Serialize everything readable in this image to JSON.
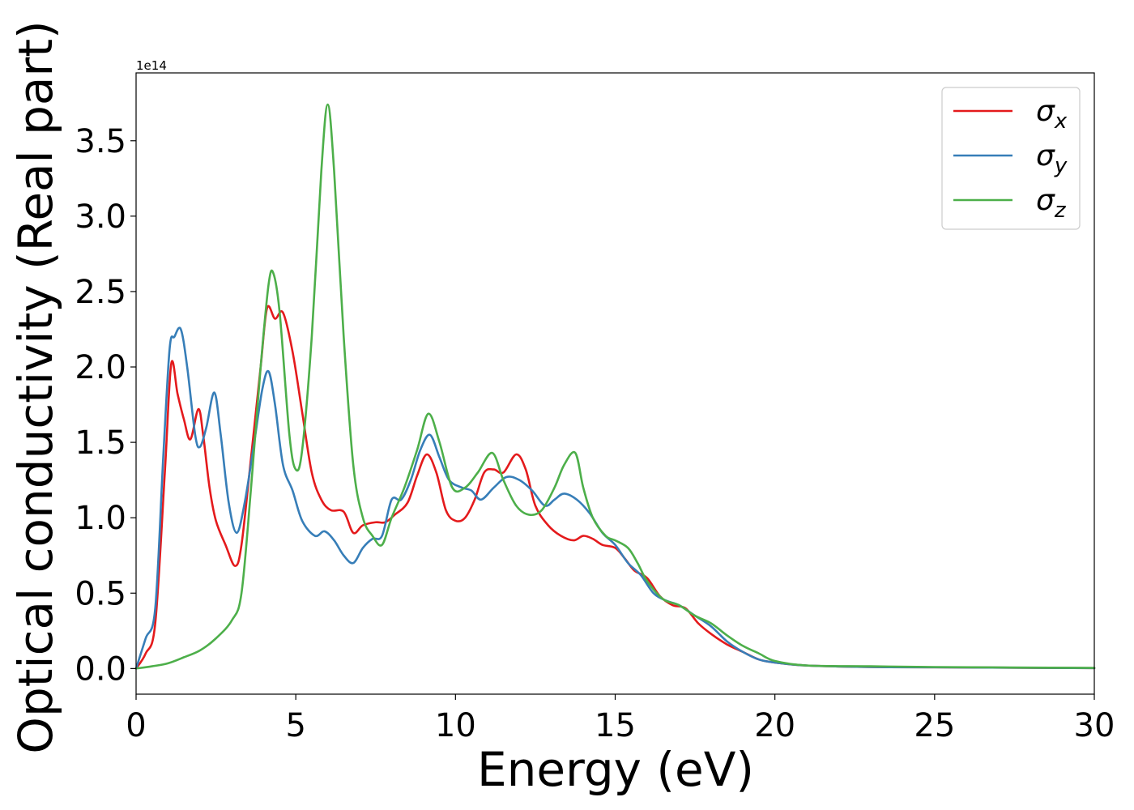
{
  "chart_data": {
    "type": "line",
    "xlabel": "Energy (eV)",
    "ylabel": "Optical conductivity (Real part)",
    "y_offset_label": "1e14",
    "xlim": [
      0,
      30
    ],
    "ylim": [
      -0.17,
      3.95
    ],
    "x_ticks": [
      0,
      5,
      10,
      15,
      20,
      25,
      30
    ],
    "x_tick_labels": [
      "0",
      "5",
      "10",
      "15",
      "20",
      "25",
      "30"
    ],
    "y_ticks": [
      0.0,
      0.5,
      1.0,
      1.5,
      2.0,
      2.5,
      3.0,
      3.5
    ],
    "y_tick_labels": [
      "0.0",
      "0.5",
      "1.0",
      "1.5",
      "2.0",
      "2.5",
      "3.0",
      "3.5"
    ],
    "grid": false,
    "legend_position": "top-right",
    "series": [
      {
        "name": "σx",
        "legend_base": "σ",
        "legend_sub": "x",
        "color": "#e41a1c",
        "points": [
          [
            0,
            0
          ],
          [
            0.3,
            0.1
          ],
          [
            0.6,
            0.3
          ],
          [
            0.9,
            1.3
          ],
          [
            1.1,
            2.02
          ],
          [
            1.3,
            1.82
          ],
          [
            1.5,
            1.65
          ],
          [
            1.7,
            1.52
          ],
          [
            1.95,
            1.72
          ],
          [
            2.1,
            1.55
          ],
          [
            2.3,
            1.2
          ],
          [
            2.5,
            0.98
          ],
          [
            2.8,
            0.82
          ],
          [
            3.1,
            0.68
          ],
          [
            3.3,
            0.82
          ],
          [
            3.6,
            1.4
          ],
          [
            3.9,
            2.0
          ],
          [
            4.1,
            2.39
          ],
          [
            4.35,
            2.32
          ],
          [
            4.6,
            2.36
          ],
          [
            4.9,
            2.1
          ],
          [
            5.2,
            1.7
          ],
          [
            5.5,
            1.3
          ],
          [
            5.8,
            1.12
          ],
          [
            6.1,
            1.05
          ],
          [
            6.5,
            1.04
          ],
          [
            6.8,
            0.9
          ],
          [
            7.1,
            0.95
          ],
          [
            7.5,
            0.97
          ],
          [
            7.8,
            0.97
          ],
          [
            8.1,
            1.02
          ],
          [
            8.5,
            1.1
          ],
          [
            8.8,
            1.28
          ],
          [
            9.1,
            1.42
          ],
          [
            9.4,
            1.3
          ],
          [
            9.7,
            1.05
          ],
          [
            10.0,
            0.98
          ],
          [
            10.3,
            1.0
          ],
          [
            10.6,
            1.12
          ],
          [
            10.9,
            1.3
          ],
          [
            11.2,
            1.32
          ],
          [
            11.5,
            1.3
          ],
          [
            11.9,
            1.42
          ],
          [
            12.2,
            1.32
          ],
          [
            12.5,
            1.08
          ],
          [
            12.9,
            0.95
          ],
          [
            13.3,
            0.88
          ],
          [
            13.7,
            0.85
          ],
          [
            14.0,
            0.88
          ],
          [
            14.3,
            0.86
          ],
          [
            14.6,
            0.82
          ],
          [
            15.0,
            0.8
          ],
          [
            15.3,
            0.73
          ],
          [
            15.6,
            0.65
          ],
          [
            16.0,
            0.6
          ],
          [
            16.4,
            0.48
          ],
          [
            16.8,
            0.42
          ],
          [
            17.2,
            0.4
          ],
          [
            17.6,
            0.3
          ],
          [
            18.0,
            0.23
          ],
          [
            18.5,
            0.16
          ],
          [
            19.0,
            0.11
          ],
          [
            19.5,
            0.06
          ],
          [
            20.0,
            0.04
          ],
          [
            21.0,
            0.02
          ],
          [
            23.0,
            0.01
          ],
          [
            25.0,
            0.008
          ],
          [
            30.0,
            0.003
          ]
        ]
      },
      {
        "name": "σy",
        "legend_base": "σ",
        "legend_sub": "y",
        "color": "#377eb8",
        "points": [
          [
            0,
            0
          ],
          [
            0.3,
            0.2
          ],
          [
            0.6,
            0.4
          ],
          [
            0.85,
            1.4
          ],
          [
            1.05,
            2.12
          ],
          [
            1.2,
            2.2
          ],
          [
            1.4,
            2.25
          ],
          [
            1.6,
            2.0
          ],
          [
            1.85,
            1.55
          ],
          [
            2.0,
            1.47
          ],
          [
            2.2,
            1.6
          ],
          [
            2.45,
            1.83
          ],
          [
            2.65,
            1.55
          ],
          [
            2.9,
            1.1
          ],
          [
            3.15,
            0.9
          ],
          [
            3.4,
            1.1
          ],
          [
            3.7,
            1.5
          ],
          [
            3.95,
            1.85
          ],
          [
            4.15,
            1.97
          ],
          [
            4.35,
            1.75
          ],
          [
            4.6,
            1.35
          ],
          [
            4.9,
            1.18
          ],
          [
            5.2,
            0.98
          ],
          [
            5.6,
            0.88
          ],
          [
            5.9,
            0.91
          ],
          [
            6.2,
            0.85
          ],
          [
            6.5,
            0.75
          ],
          [
            6.8,
            0.7
          ],
          [
            7.1,
            0.8
          ],
          [
            7.4,
            0.86
          ],
          [
            7.7,
            0.88
          ],
          [
            8.0,
            1.12
          ],
          [
            8.3,
            1.12
          ],
          [
            8.6,
            1.25
          ],
          [
            8.9,
            1.45
          ],
          [
            9.2,
            1.55
          ],
          [
            9.5,
            1.4
          ],
          [
            9.8,
            1.25
          ],
          [
            10.2,
            1.2
          ],
          [
            10.5,
            1.18
          ],
          [
            10.8,
            1.12
          ],
          [
            11.2,
            1.2
          ],
          [
            11.6,
            1.27
          ],
          [
            12.0,
            1.25
          ],
          [
            12.4,
            1.18
          ],
          [
            12.8,
            1.08
          ],
          [
            13.1,
            1.12
          ],
          [
            13.4,
            1.16
          ],
          [
            13.8,
            1.12
          ],
          [
            14.2,
            1.03
          ],
          [
            14.6,
            0.9
          ],
          [
            15.0,
            0.82
          ],
          [
            15.4,
            0.7
          ],
          [
            15.8,
            0.62
          ],
          [
            16.2,
            0.5
          ],
          [
            16.6,
            0.45
          ],
          [
            17.0,
            0.42
          ],
          [
            17.5,
            0.35
          ],
          [
            18.0,
            0.28
          ],
          [
            18.5,
            0.18
          ],
          [
            19.0,
            0.11
          ],
          [
            19.5,
            0.06
          ],
          [
            20.0,
            0.04
          ],
          [
            21.0,
            0.02
          ],
          [
            23.0,
            0.01
          ],
          [
            25.0,
            0.008
          ],
          [
            30.0,
            0.003
          ]
        ]
      },
      {
        "name": "σz",
        "legend_base": "σ",
        "legend_sub": "z",
        "color": "#4daf4a",
        "points": [
          [
            0,
            0
          ],
          [
            0.5,
            0.015
          ],
          [
            1.0,
            0.035
          ],
          [
            1.5,
            0.075
          ],
          [
            2.0,
            0.12
          ],
          [
            2.5,
            0.2
          ],
          [
            3.0,
            0.32
          ],
          [
            3.3,
            0.5
          ],
          [
            3.6,
            1.2
          ],
          [
            3.9,
            2.0
          ],
          [
            4.15,
            2.55
          ],
          [
            4.3,
            2.62
          ],
          [
            4.5,
            2.35
          ],
          [
            4.8,
            1.55
          ],
          [
            5.0,
            1.32
          ],
          [
            5.2,
            1.45
          ],
          [
            5.5,
            2.2
          ],
          [
            5.8,
            3.3
          ],
          [
            6.0,
            3.74
          ],
          [
            6.2,
            3.3
          ],
          [
            6.5,
            2.2
          ],
          [
            6.8,
            1.35
          ],
          [
            7.1,
            1.0
          ],
          [
            7.4,
            0.88
          ],
          [
            7.7,
            0.82
          ],
          [
            8.0,
            1.0
          ],
          [
            8.4,
            1.2
          ],
          [
            8.8,
            1.45
          ],
          [
            9.15,
            1.69
          ],
          [
            9.5,
            1.5
          ],
          [
            9.9,
            1.2
          ],
          [
            10.3,
            1.2
          ],
          [
            10.7,
            1.3
          ],
          [
            11.15,
            1.43
          ],
          [
            11.5,
            1.25
          ],
          [
            11.9,
            1.08
          ],
          [
            12.3,
            1.02
          ],
          [
            12.7,
            1.05
          ],
          [
            13.1,
            1.2
          ],
          [
            13.4,
            1.35
          ],
          [
            13.75,
            1.43
          ],
          [
            14.0,
            1.2
          ],
          [
            14.3,
            1.0
          ],
          [
            14.7,
            0.88
          ],
          [
            15.0,
            0.85
          ],
          [
            15.4,
            0.8
          ],
          [
            15.7,
            0.7
          ],
          [
            16.0,
            0.58
          ],
          [
            16.5,
            0.46
          ],
          [
            17.0,
            0.42
          ],
          [
            17.5,
            0.35
          ],
          [
            18.0,
            0.3
          ],
          [
            18.5,
            0.22
          ],
          [
            19.0,
            0.15
          ],
          [
            19.5,
            0.1
          ],
          [
            20.0,
            0.05
          ],
          [
            21.0,
            0.02
          ],
          [
            23.0,
            0.015
          ],
          [
            25.0,
            0.01
          ],
          [
            30.0,
            0.004
          ]
        ]
      }
    ]
  }
}
